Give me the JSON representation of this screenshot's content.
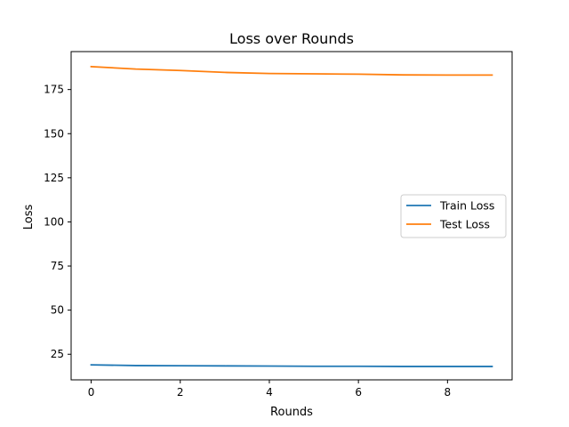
{
  "chart_data": {
    "type": "line",
    "title": "Loss over Rounds",
    "xlabel": "Rounds",
    "ylabel": "Loss",
    "xlim": [
      -0.45,
      9.45
    ],
    "ylim": [
      10.5,
      196.5
    ],
    "xticks": [
      0,
      2,
      4,
      6,
      8
    ],
    "yticks": [
      25,
      50,
      75,
      100,
      125,
      150,
      175
    ],
    "grid": false,
    "legend_position": "center-right",
    "x": [
      0,
      1,
      2,
      3,
      4,
      5,
      6,
      7,
      8,
      9
    ],
    "series": [
      {
        "name": "Train Loss",
        "color": "#1f77b4",
        "values": [
          19.0,
          18.6,
          18.5,
          18.4,
          18.3,
          18.2,
          18.2,
          18.1,
          18.1,
          18.1
        ]
      },
      {
        "name": "Test Loss",
        "color": "#ff7f0e",
        "values": [
          188.0,
          186.6,
          185.8,
          184.7,
          184.1,
          183.9,
          183.7,
          183.3,
          183.2,
          183.2
        ]
      }
    ]
  }
}
